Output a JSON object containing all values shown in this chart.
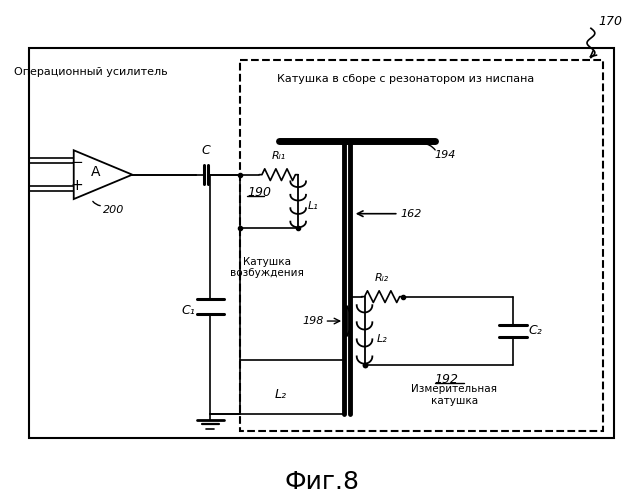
{
  "title": "Фиг.8",
  "label_170": "170",
  "label_200": "200",
  "label_190": "190",
  "label_194": "194",
  "label_162": "162",
  "label_198": "198",
  "label_192": "192",
  "label_C": "C",
  "label_C1": "C₁",
  "label_C2": "C₂",
  "label_L1": "L₁",
  "label_L2": "L₂",
  "label_L2_bottom": "L₂",
  "label_RL1": "Rₗ₁",
  "label_RL2": "Rₗ₂",
  "label_opamp": "Операционный усилитель",
  "label_coil_assembly": "Катушка в сборе с резонатором из ниспана",
  "label_excitation": "Катушка\nвозбуждения",
  "label_measurement": "Измерительная\nкатушка",
  "bg_color": "#ffffff",
  "line_color": "#000000"
}
